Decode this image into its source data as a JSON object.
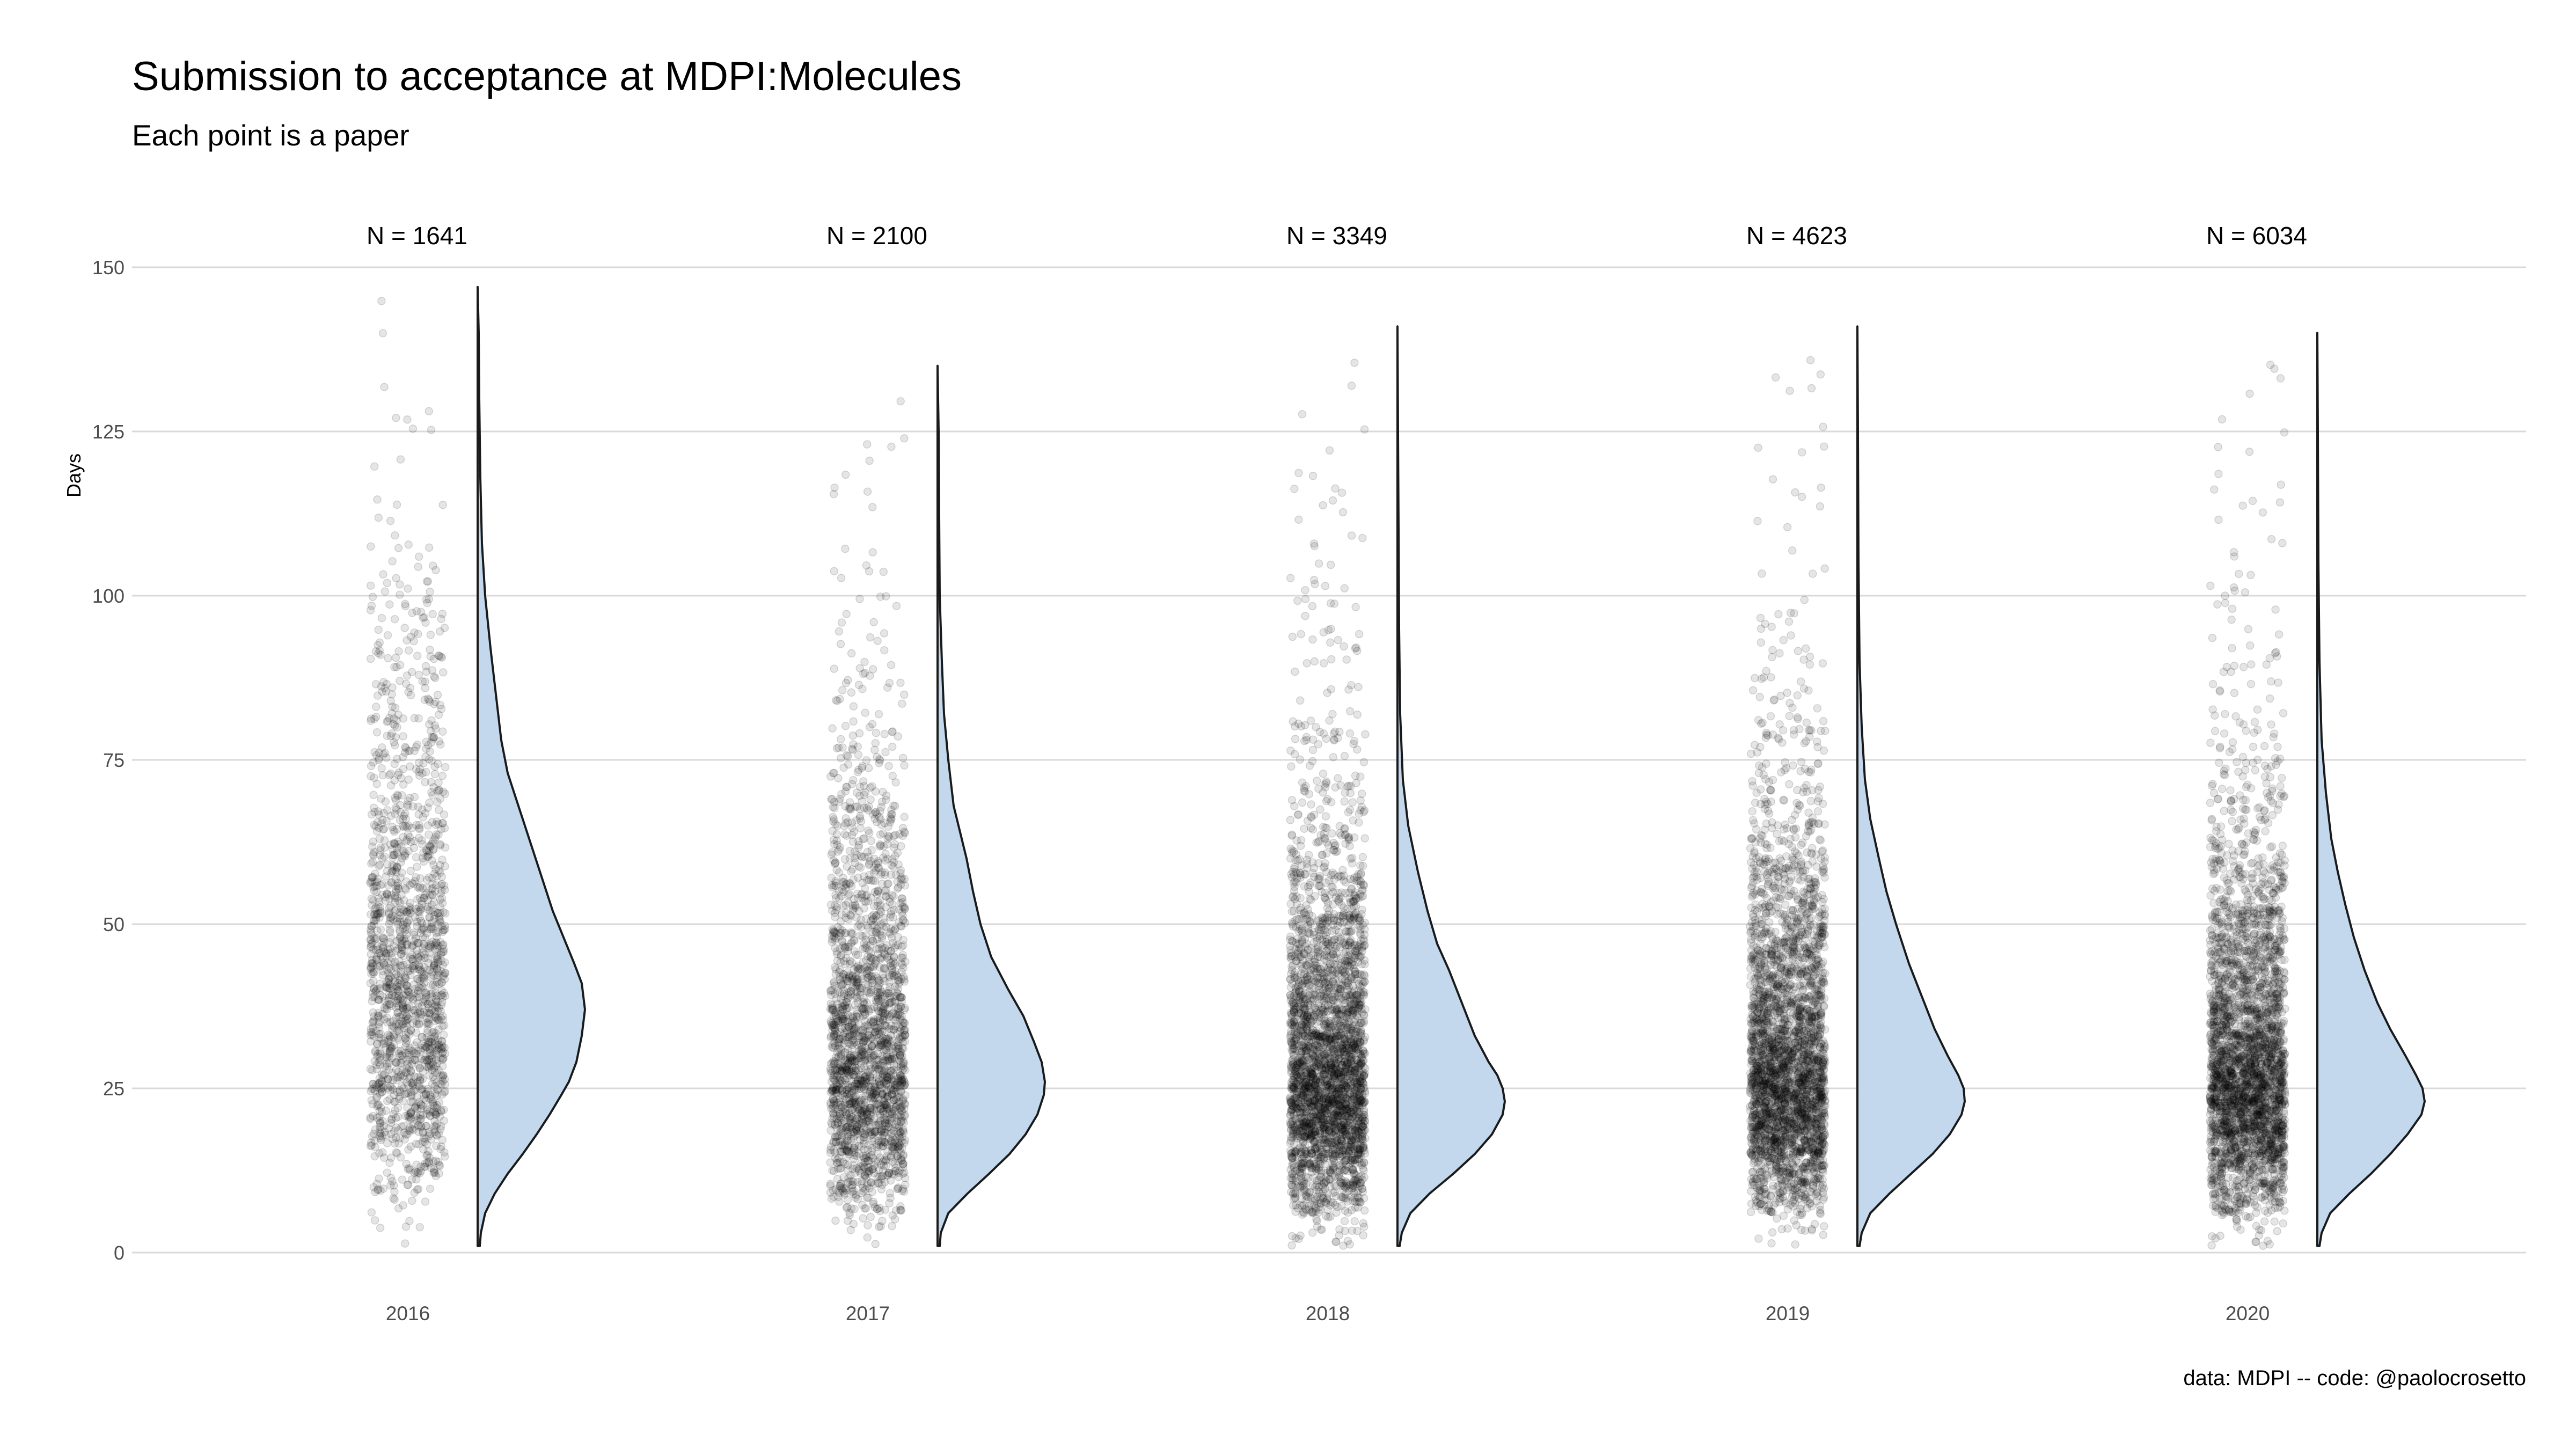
{
  "title": "Submission to acceptance at MDPI:Molecules",
  "subtitle": "Each point is a paper",
  "caption": "data: MDPI -- code: @paolocrosetto",
  "chart_data": {
    "type": "raincloud",
    "title": "Submission to acceptance at MDPI:Molecules",
    "subtitle": "Each point is a paper",
    "xlabel": "",
    "ylabel": "Days",
    "ylim": [
      0,
      150
    ],
    "y_ticks": [
      0,
      25,
      50,
      75,
      100,
      125,
      150
    ],
    "grid": true,
    "colors": {
      "density_fill": "#c3d8ec",
      "density_stroke": "#1a1a1a",
      "points": "#000000",
      "grid": "#d9d9d9"
    },
    "groups": [
      {
        "category": "2016",
        "n": 1641,
        "n_label": "N = 1641",
        "density": [
          [
            1,
            0.02
          ],
          [
            3,
            0.03
          ],
          [
            6,
            0.07
          ],
          [
            9,
            0.16
          ],
          [
            12,
            0.28
          ],
          [
            15,
            0.42
          ],
          [
            18,
            0.55
          ],
          [
            21,
            0.67
          ],
          [
            24,
            0.78
          ],
          [
            26,
            0.85
          ],
          [
            29,
            0.92
          ],
          [
            33,
            0.97
          ],
          [
            37,
            1.0
          ],
          [
            41,
            0.97
          ],
          [
            44,
            0.9
          ],
          [
            48,
            0.8
          ],
          [
            52,
            0.7
          ],
          [
            57,
            0.6
          ],
          [
            62,
            0.5
          ],
          [
            68,
            0.38
          ],
          [
            73,
            0.28
          ],
          [
            78,
            0.22
          ],
          [
            85,
            0.17
          ],
          [
            92,
            0.12
          ],
          [
            100,
            0.07
          ],
          [
            108,
            0.04
          ],
          [
            118,
            0.025
          ],
          [
            130,
            0.015
          ],
          [
            140,
            0.01
          ],
          [
            147,
            0.0
          ]
        ]
      },
      {
        "category": "2017",
        "n": 2100,
        "n_label": "N = 2100",
        "density": [
          [
            1,
            0.02
          ],
          [
            3,
            0.03
          ],
          [
            6,
            0.1
          ],
          [
            9,
            0.28
          ],
          [
            12,
            0.48
          ],
          [
            15,
            0.67
          ],
          [
            18,
            0.82
          ],
          [
            21,
            0.93
          ],
          [
            24,
            0.99
          ],
          [
            26,
            1.0
          ],
          [
            29,
            0.97
          ],
          [
            32,
            0.9
          ],
          [
            36,
            0.8
          ],
          [
            40,
            0.66
          ],
          [
            45,
            0.5
          ],
          [
            50,
            0.4
          ],
          [
            55,
            0.33
          ],
          [
            60,
            0.27
          ],
          [
            68,
            0.15
          ],
          [
            75,
            0.1
          ],
          [
            82,
            0.06
          ],
          [
            90,
            0.04
          ],
          [
            100,
            0.02
          ],
          [
            112,
            0.015
          ],
          [
            125,
            0.01
          ],
          [
            135,
            0.0
          ]
        ]
      },
      {
        "category": "2018",
        "n": 3349,
        "n_label": "N = 3349",
        "density": [
          [
            1,
            0.02
          ],
          [
            3,
            0.04
          ],
          [
            6,
            0.12
          ],
          [
            9,
            0.3
          ],
          [
            12,
            0.52
          ],
          [
            15,
            0.72
          ],
          [
            18,
            0.88
          ],
          [
            21,
            0.98
          ],
          [
            23,
            1.0
          ],
          [
            25,
            0.98
          ],
          [
            27,
            0.93
          ],
          [
            29,
            0.85
          ],
          [
            33,
            0.72
          ],
          [
            38,
            0.6
          ],
          [
            43,
            0.48
          ],
          [
            47,
            0.37
          ],
          [
            52,
            0.28
          ],
          [
            58,
            0.19
          ],
          [
            65,
            0.1
          ],
          [
            72,
            0.05
          ],
          [
            82,
            0.025
          ],
          [
            95,
            0.015
          ],
          [
            110,
            0.01
          ],
          [
            125,
            0.005
          ],
          [
            141,
            0.0
          ]
        ]
      },
      {
        "category": "2019",
        "n": 4623,
        "n_label": "N = 4623",
        "density": [
          [
            1,
            0.02
          ],
          [
            3,
            0.04
          ],
          [
            6,
            0.12
          ],
          [
            9,
            0.3
          ],
          [
            12,
            0.5
          ],
          [
            15,
            0.7
          ],
          [
            18,
            0.86
          ],
          [
            21,
            0.97
          ],
          [
            23,
            1.0
          ],
          [
            25,
            0.99
          ],
          [
            27,
            0.94
          ],
          [
            30,
            0.84
          ],
          [
            34,
            0.72
          ],
          [
            39,
            0.6
          ],
          [
            44,
            0.48
          ],
          [
            50,
            0.36
          ],
          [
            55,
            0.27
          ],
          [
            60,
            0.2
          ],
          [
            66,
            0.12
          ],
          [
            72,
            0.07
          ],
          [
            80,
            0.04
          ],
          [
            90,
            0.02
          ],
          [
            105,
            0.01
          ],
          [
            125,
            0.005
          ],
          [
            141,
            0.0
          ]
        ]
      },
      {
        "category": "2020",
        "n": 6034,
        "n_label": "N = 6034",
        "density": [
          [
            1,
            0.02
          ],
          [
            3,
            0.04
          ],
          [
            6,
            0.12
          ],
          [
            9,
            0.3
          ],
          [
            12,
            0.5
          ],
          [
            15,
            0.68
          ],
          [
            18,
            0.84
          ],
          [
            21,
            0.97
          ],
          [
            23,
            1.0
          ],
          [
            25,
            0.98
          ],
          [
            27,
            0.92
          ],
          [
            30,
            0.82
          ],
          [
            34,
            0.68
          ],
          [
            38,
            0.56
          ],
          [
            43,
            0.44
          ],
          [
            48,
            0.34
          ],
          [
            53,
            0.26
          ],
          [
            58,
            0.19
          ],
          [
            63,
            0.13
          ],
          [
            70,
            0.08
          ],
          [
            78,
            0.04
          ],
          [
            90,
            0.02
          ],
          [
            105,
            0.01
          ],
          [
            125,
            0.005
          ],
          [
            140,
            0.0
          ]
        ]
      }
    ]
  }
}
